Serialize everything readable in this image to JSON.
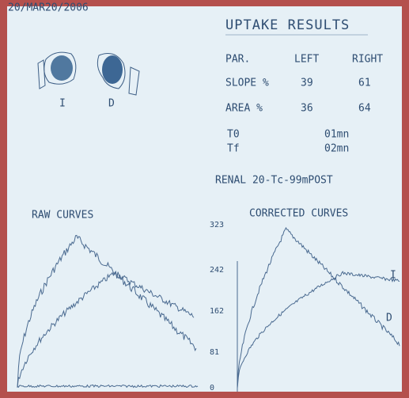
{
  "header": {
    "date": "20/MAR20/2006",
    "title": "UPTAKE RESULTS"
  },
  "kidneys": {
    "left_label": "I",
    "right_label": "D"
  },
  "table": {
    "headers": [
      "PAR.",
      "LEFT",
      "RIGHT"
    ],
    "rows": [
      [
        "SLOPE %",
        "39",
        "61"
      ],
      [
        "AREA %",
        "36",
        "64"
      ]
    ]
  },
  "times": [
    [
      "T0",
      "01mn"
    ],
    [
      "Tf",
      "02mn"
    ]
  ],
  "study": "RENAL 20-Tc-99mPOST",
  "raw_curves": {
    "title": "RAW CURVES"
  },
  "corrected_curves": {
    "title": "CORRECTED CURVES",
    "axis_ticks": [
      "323",
      "242",
      "162",
      "81",
      "0"
    ],
    "curve_labels": [
      "I",
      "D"
    ]
  }
}
